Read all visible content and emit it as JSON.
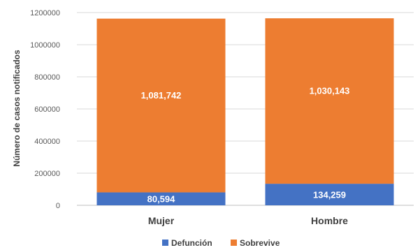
{
  "chart_data": {
    "type": "bar",
    "stacked": true,
    "title": "",
    "xlabel": "",
    "ylabel": "Número de casos notificados",
    "ylim": [
      0,
      1200000
    ],
    "yticks": [
      0,
      200000,
      400000,
      600000,
      800000,
      1000000,
      1200000
    ],
    "ytick_labels": [
      "0",
      "200000",
      "400000",
      "600000",
      "800000",
      "1000000",
      "1200000"
    ],
    "categories": [
      "Mujer",
      "Hombre"
    ],
    "series": [
      {
        "name": "Defunción",
        "values": [
          80594,
          134259
        ],
        "labels": [
          "80,594",
          "134,259"
        ],
        "color": "#4472C4"
      },
      {
        "name": "Sobrevive",
        "values": [
          1081742,
          1030143
        ],
        "labels": [
          "1,081,742",
          "1,030,143"
        ],
        "color": "#ED7D31"
      }
    ],
    "grid": true,
    "legend_position": "bottom"
  }
}
